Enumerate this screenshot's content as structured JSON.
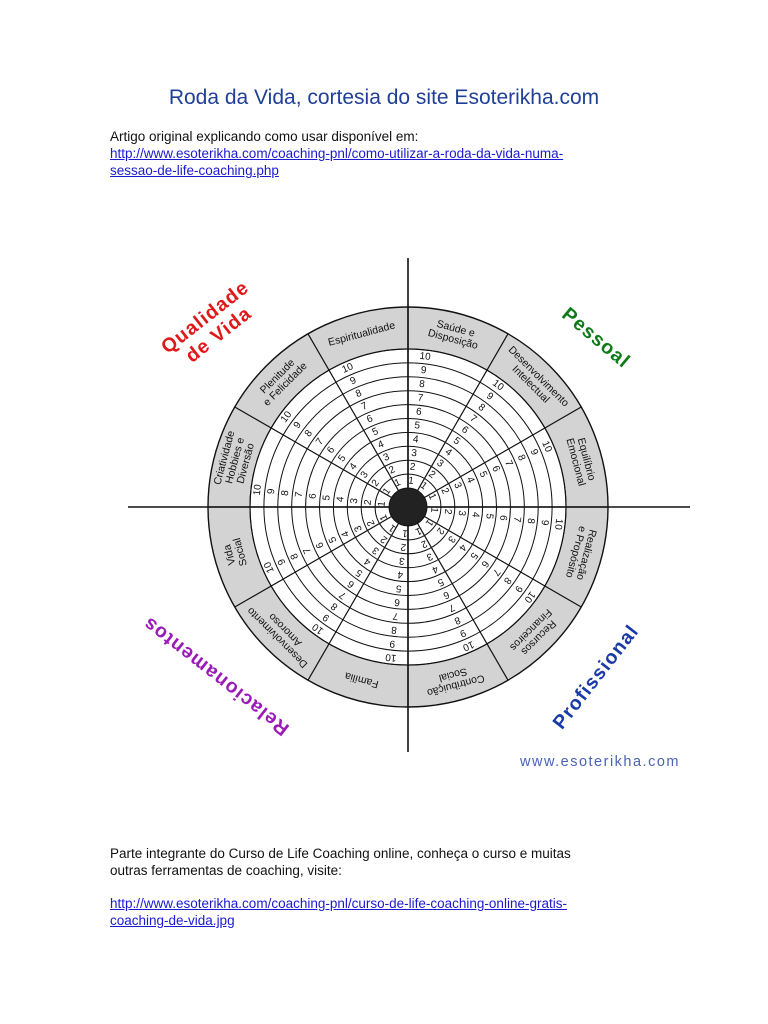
{
  "page": {
    "title": "Roda da Vida, cortesia do site Esoterikha.com",
    "intro_text": "Artigo original explicando como usar disponível em:",
    "intro_link": [
      "http://www.esoterikha.com/coaching-pnl/como-utilizar-a-roda-da-vida-numa-",
      "sessao-de-life-coaching.php"
    ],
    "outro_text": [
      "Parte integrante do Curso de Life Coaching online, conheça o curso e muitas",
      "outras ferramentas de coaching, visite:"
    ],
    "outro_link": [
      "http://www.esoterikha.com/coaching-pnl/curso-de-life-coaching-online-gratis-",
      "coaching-de-vida.jpg"
    ],
    "site_watermark": "www.esoterikha.com"
  },
  "wheel": {
    "scale": [
      "1",
      "2",
      "3",
      "4",
      "5",
      "6",
      "7",
      "8",
      "9",
      "10"
    ],
    "segments": [
      [
        "Saúde e",
        "Disposição"
      ],
      [
        "Desenvolvimento",
        "Intelectual"
      ],
      [
        "Equilíbrio",
        "Emocional"
      ],
      [
        "Realização",
        "e Propósito"
      ],
      [
        "Recursos",
        "Financeiros"
      ],
      [
        "Contribuição",
        "Social"
      ],
      [
        "Família"
      ],
      [
        "Desenvolvimento",
        "Amoroso"
      ],
      [
        "Vida",
        "Social"
      ],
      [
        "Criatividade",
        "Hobbies e",
        "Diversão"
      ],
      [
        "Plenitude",
        "e Felicidade"
      ],
      [
        "Espiritualidade"
      ]
    ],
    "quadrants": [
      {
        "lines": [
          "Qualidade",
          "de Vida"
        ],
        "color": "#e01818"
      },
      {
        "lines": [
          "Pessoal"
        ],
        "color": "#107a18"
      },
      {
        "lines": [
          "Profissional"
        ],
        "color": "#1a3aa8"
      },
      {
        "lines": [
          "Relacionamentos"
        ],
        "color": "#9a1ab8"
      }
    ],
    "colors": {
      "band": "#d3d3d3",
      "hub": "#222222",
      "stroke": "#111111"
    }
  }
}
